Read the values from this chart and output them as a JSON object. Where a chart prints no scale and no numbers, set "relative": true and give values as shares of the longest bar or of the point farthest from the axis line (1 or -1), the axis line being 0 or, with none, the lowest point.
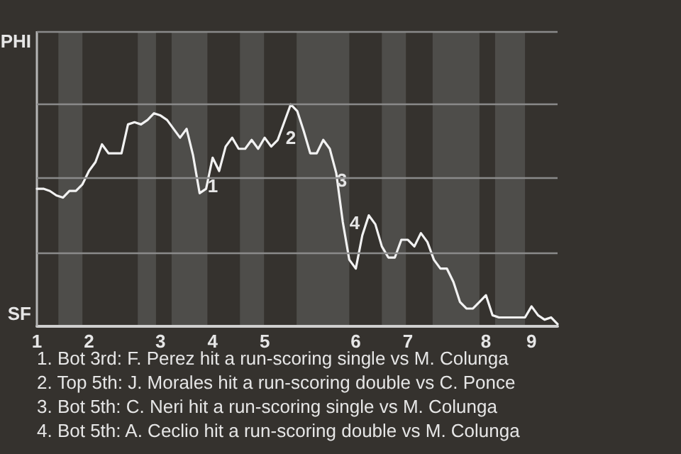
{
  "chart_data": {
    "type": "line",
    "color": "#f2f2f2",
    "relative": true,
    "categories": [
      "1",
      null,
      null,
      null,
      null,
      null,
      null,
      null,
      "2",
      null,
      null,
      null,
      null,
      null,
      null,
      null,
      null,
      null,
      null,
      "3",
      null,
      null,
      null,
      null,
      null,
      null,
      null,
      "4",
      null,
      null,
      null,
      null,
      null,
      null,
      null,
      "5",
      null,
      null,
      null,
      null,
      null,
      null,
      null,
      null,
      null,
      null,
      null,
      null,
      null,
      "6",
      null,
      null,
      null,
      null,
      null,
      null,
      null,
      "7",
      null,
      null,
      null,
      null,
      null,
      null,
      null,
      null,
      null,
      null,
      null,
      "8",
      null,
      null,
      null,
      null,
      null,
      null,
      "9",
      null,
      null,
      null,
      null
    ],
    "values": [
      0.62,
      0.62,
      0.61,
      0.59,
      0.58,
      0.61,
      0.61,
      0.64,
      0.7,
      0.74,
      0.82,
      0.78,
      0.78,
      0.78,
      0.91,
      0.92,
      0.91,
      0.93,
      0.96,
      0.95,
      0.93,
      0.89,
      0.85,
      0.89,
      0.77,
      0.6,
      0.62,
      0.76,
      0.7,
      0.81,
      0.85,
      0.8,
      0.8,
      0.84,
      0.8,
      0.85,
      0.81,
      0.84,
      0.92,
      1,
      0.97,
      0.88,
      0.78,
      0.78,
      0.84,
      0.8,
      0.69,
      0.47,
      0.3,
      0.26,
      0.41,
      0.5,
      0.46,
      0.36,
      0.31,
      0.31,
      0.39,
      0.39,
      0.36,
      0.42,
      0.38,
      0.3,
      0.26,
      0.26,
      0.2,
      0.11,
      0.08,
      0.08,
      0.11,
      0.14,
      0.05,
      0.04,
      0.04,
      0.04,
      0.04,
      0.04,
      0.09,
      0.05,
      0.03,
      0.04,
      0.01
    ],
    "ref_lines": [
      {
        "axis": "y",
        "value": 0.33,
        "label": null,
        "color": "#8a8a8a"
      },
      {
        "axis": "y",
        "value": 0.67,
        "label": null,
        "color": "#8a8a8a"
      },
      {
        "axis": "y",
        "value": 1,
        "label": null,
        "color": "#8a8a8a"
      },
      {
        "axis": "y",
        "value": 1.33,
        "label": null,
        "color": "#8a8a8a"
      }
    ],
    "annotations": [
      "PHI",
      "SF",
      "1",
      "2",
      "3",
      "4",
      "1. Bot 3rd: F. Perez hit a run-scoring single vs M. Colunga",
      "2. Top 5th: J. Morales hit a run-scoring double vs C. Ponce",
      "3. Bot 5th: C. Neri hit a run-scoring single vs M. Colunga",
      "4. Bot 5th: A. Ceclio hit a run-scoring double vs M. Colunga"
    ]
  }
}
